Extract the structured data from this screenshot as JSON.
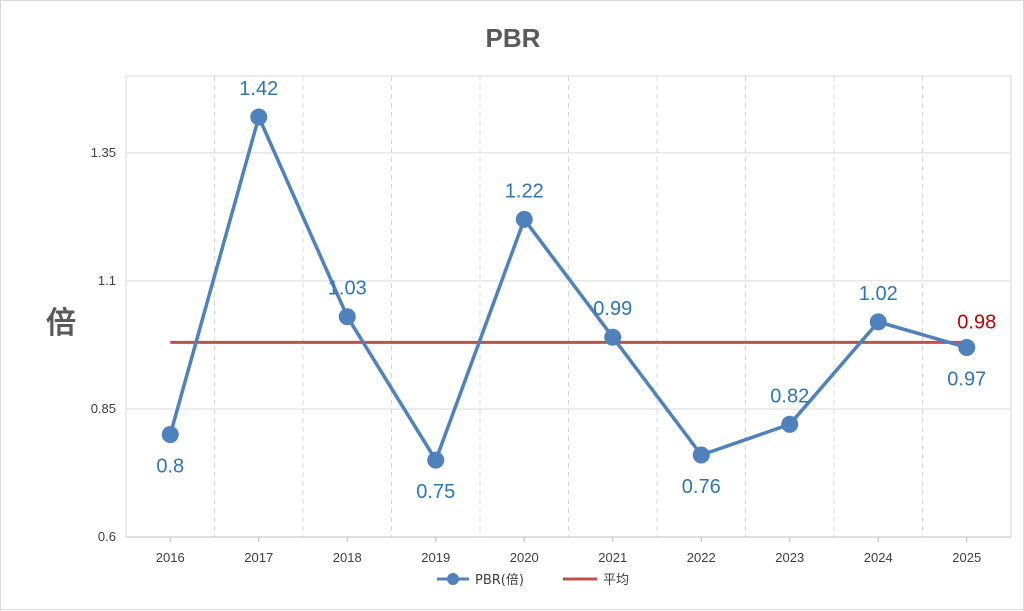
{
  "colors": {
    "series": "#4f81bd",
    "average": "#c0504d",
    "data_label": "#2e75b6",
    "average_label": "#c00000",
    "grid": "#d9d9d9",
    "axis": "#bfbfbf"
  },
  "chart_data": {
    "type": "line",
    "title": "PBR",
    "xlabel": "",
    "ylabel": "倍",
    "categories": [
      "2016",
      "2017",
      "2018",
      "2019",
      "2020",
      "2021",
      "2022",
      "2023",
      "2024",
      "2025"
    ],
    "yticks": [
      "0.6",
      "0.85",
      "1.1",
      "1.35"
    ],
    "ylim": [
      0.6,
      1.5
    ],
    "grid": {
      "horizontal": true,
      "vertical_dashed": true
    },
    "legend_position": "bottom",
    "series": [
      {
        "name": "PBR(倍)",
        "type": "line-with-markers",
        "values": [
          0.8,
          1.42,
          1.03,
          0.75,
          1.22,
          0.99,
          0.76,
          0.82,
          1.02,
          0.97
        ],
        "labels": [
          "0.8",
          "1.42",
          "1.03",
          "0.75",
          "1.22",
          "0.99",
          "0.76",
          "0.82",
          "1.02",
          "0.97"
        ]
      },
      {
        "name": "平均",
        "type": "line",
        "value": 0.98,
        "label": "0.98",
        "label_at": "2025"
      }
    ]
  }
}
